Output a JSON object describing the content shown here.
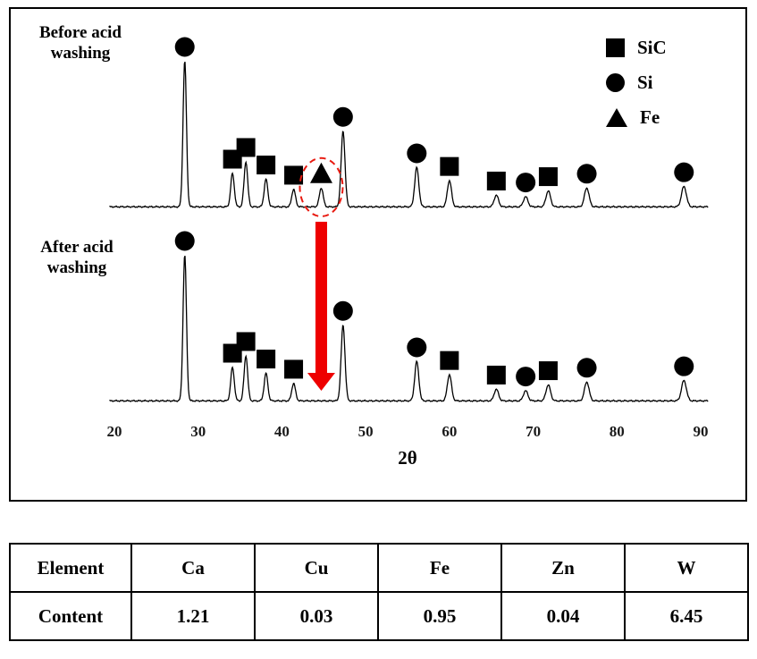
{
  "figure": {
    "before_label": "Before acid washing",
    "after_label": "After acid washing",
    "legend": [
      {
        "marker": "square",
        "label": "SiC"
      },
      {
        "marker": "circle",
        "label": "Si"
      },
      {
        "marker": "triangle",
        "label": "Fe"
      }
    ],
    "annotation": {
      "ellipse_color": "#e8190f",
      "arrow_color": "#ee0000",
      "meaning": "Fe peak present before acid washing disappears after acid washing"
    }
  },
  "chart_data": {
    "type": "line",
    "title": "",
    "xlabel": "2θ",
    "ylabel": "",
    "xlim": [
      20,
      90
    ],
    "x_ticks": [
      20,
      30,
      40,
      50,
      60,
      70,
      80,
      90
    ],
    "grid": false,
    "legend_position": "top-right",
    "marker_legend": {
      "SiC": "square",
      "Si": "circle",
      "Fe": "triangle"
    },
    "series": [
      {
        "name": "Before acid washing",
        "peaks": [
          {
            "two_theta": 28.4,
            "intensity": 100,
            "phase": "Si"
          },
          {
            "two_theta": 34.1,
            "intensity": 23,
            "phase": "SiC"
          },
          {
            "two_theta": 35.7,
            "intensity": 31,
            "phase": "SiC"
          },
          {
            "two_theta": 38.1,
            "intensity": 19,
            "phase": "SiC"
          },
          {
            "two_theta": 41.4,
            "intensity": 12,
            "phase": "SiC"
          },
          {
            "two_theta": 44.7,
            "intensity": 13,
            "phase": "Fe"
          },
          {
            "two_theta": 47.3,
            "intensity": 52,
            "phase": "Si"
          },
          {
            "two_theta": 56.1,
            "intensity": 27,
            "phase": "Si"
          },
          {
            "two_theta": 60.0,
            "intensity": 18,
            "phase": "SiC"
          },
          {
            "two_theta": 65.6,
            "intensity": 8,
            "phase": "SiC"
          },
          {
            "two_theta": 69.1,
            "intensity": 7,
            "phase": "Si"
          },
          {
            "two_theta": 71.8,
            "intensity": 11,
            "phase": "SiC"
          },
          {
            "two_theta": 76.4,
            "intensity": 13,
            "phase": "Si"
          },
          {
            "two_theta": 88.0,
            "intensity": 14,
            "phase": "Si"
          }
        ]
      },
      {
        "name": "After acid washing",
        "peaks": [
          {
            "two_theta": 28.4,
            "intensity": 100,
            "phase": "Si"
          },
          {
            "two_theta": 34.1,
            "intensity": 23,
            "phase": "SiC"
          },
          {
            "two_theta": 35.7,
            "intensity": 31,
            "phase": "SiC"
          },
          {
            "two_theta": 38.1,
            "intensity": 19,
            "phase": "SiC"
          },
          {
            "two_theta": 41.4,
            "intensity": 12,
            "phase": "SiC"
          },
          {
            "two_theta": 47.3,
            "intensity": 52,
            "phase": "Si"
          },
          {
            "two_theta": 56.1,
            "intensity": 27,
            "phase": "Si"
          },
          {
            "two_theta": 60.0,
            "intensity": 18,
            "phase": "SiC"
          },
          {
            "two_theta": 65.6,
            "intensity": 8,
            "phase": "SiC"
          },
          {
            "two_theta": 69.1,
            "intensity": 7,
            "phase": "Si"
          },
          {
            "two_theta": 71.8,
            "intensity": 11,
            "phase": "SiC"
          },
          {
            "two_theta": 76.4,
            "intensity": 13,
            "phase": "Si"
          },
          {
            "two_theta": 88.0,
            "intensity": 14,
            "phase": "Si"
          }
        ]
      }
    ]
  },
  "table": {
    "headers": [
      "Element",
      "Ca",
      "Cu",
      "Fe",
      "Zn",
      "W"
    ],
    "rows": [
      [
        "Content",
        "1.21",
        "0.03",
        "0.95",
        "0.04",
        "6.45"
      ]
    ]
  }
}
